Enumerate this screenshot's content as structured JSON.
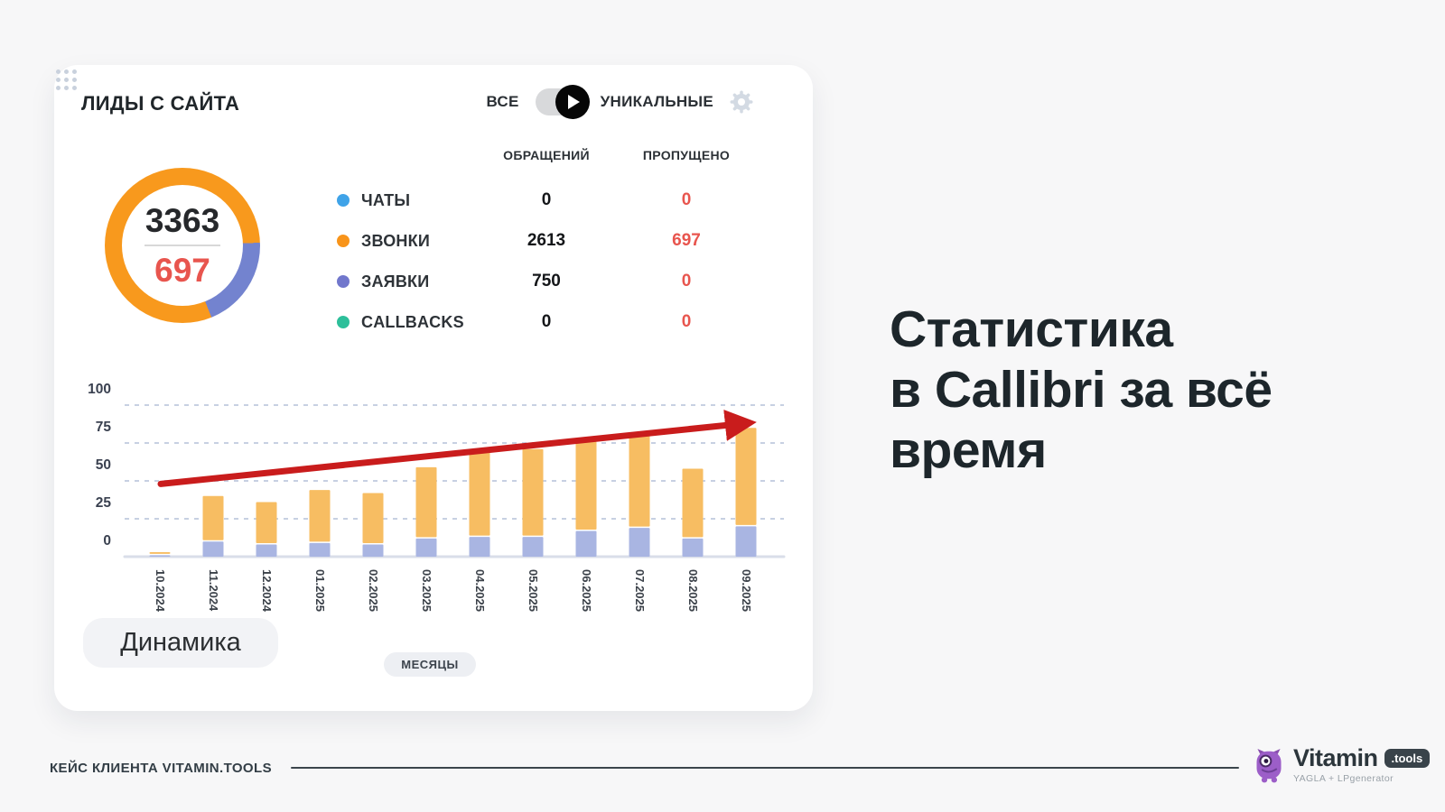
{
  "card": {
    "title": "ЛИДЫ С САЙТА",
    "toggle": {
      "left_label": "ВСЕ",
      "right_label": "УНИКАЛЬНЫЕ"
    },
    "donut": {
      "total": "3363",
      "missed": "697",
      "ring_color": "#f8991d",
      "segment_color": "#7383cf",
      "segment_from_deg": 88,
      "segment_to_deg": 158
    },
    "table": {
      "headers": [
        "ОБРАЩЕНИЙ",
        "ПРОПУЩЕНО"
      ],
      "rows": [
        {
          "label": "ЧАТЫ",
          "color": "#3fa3e8",
          "requests": "0",
          "missed": "0"
        },
        {
          "label": "ЗВОНКИ",
          "color": "#f8941a",
          "requests": "2613",
          "missed": "697"
        },
        {
          "label": "ЗАЯВКИ",
          "color": "#7177cc",
          "requests": "750",
          "missed": "0"
        },
        {
          "label": "CALLBACKS",
          "color": "#2dbf9a",
          "requests": "0",
          "missed": "0"
        }
      ]
    },
    "dynamics_button": "Динамика"
  },
  "chart_data": {
    "type": "bar",
    "stacked": true,
    "title": "",
    "xlabel": "МЕСЯЦЫ",
    "ylabel": "",
    "ylim": [
      0,
      100
    ],
    "yticks": [
      0,
      25,
      50,
      75,
      100
    ],
    "grid": "dashed-horizontal",
    "categories": [
      "10.2024",
      "11.2024",
      "12.2024",
      "01.2025",
      "02.2025",
      "03.2025",
      "04.2025",
      "05.2025",
      "06.2025",
      "07.2025",
      "08.2025",
      "09.2025"
    ],
    "series": [
      {
        "name": "заявки",
        "color": "#a9b5e2",
        "values": [
          1,
          10,
          8,
          9,
          8,
          12,
          13,
          13,
          17,
          19,
          12,
          20
        ]
      },
      {
        "name": "звонки",
        "color": "#f7bd62",
        "values": [
          2,
          30,
          28,
          35,
          34,
          47,
          57,
          58,
          59,
          61,
          46,
          65
        ]
      }
    ],
    "trend_arrow": {
      "color": "#c91c1c",
      "start_value": 48,
      "end_value": 96
    },
    "axis_colors": {
      "grid": "#c7d0e2",
      "baseline": "#d9dee9",
      "tick_text": "#3a4150",
      "month_text": "#3b4149"
    }
  },
  "headline": {
    "lines": [
      "Статистика",
      "в Callibri за всё",
      "время"
    ]
  },
  "footer": {
    "caption": "КЕЙС КЛИЕНТА VITAMIN.TOOLS",
    "logo_word": "Vitamin",
    "logo_badge": ".tools",
    "logo_tagline": "YAGLA + LPgenerator"
  }
}
